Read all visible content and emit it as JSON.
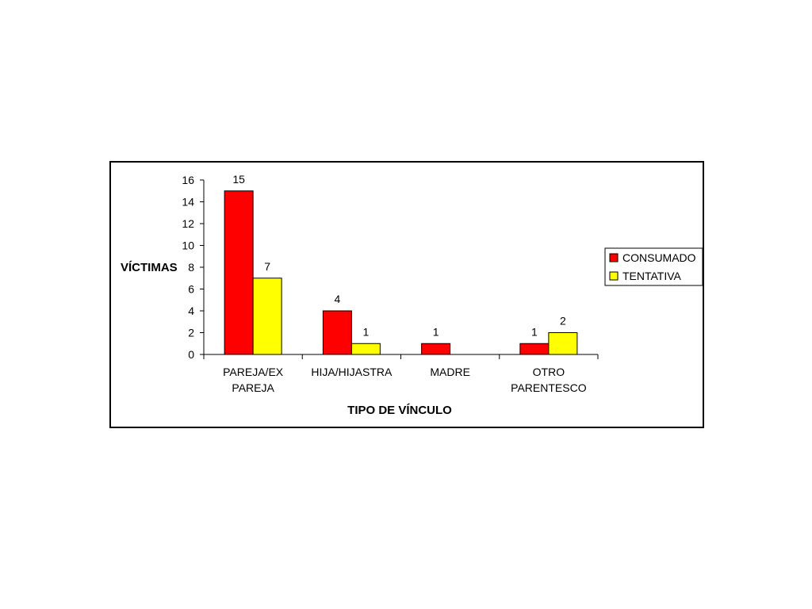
{
  "chart_data": {
    "type": "bar",
    "title": "",
    "xlabel": "TIPO DE VÍNCULO",
    "ylabel": "VÍCTIMAS",
    "ylim": [
      0,
      16
    ],
    "yticks": [
      0,
      2,
      4,
      6,
      8,
      10,
      12,
      14,
      16
    ],
    "categories": [
      [
        "PAREJA/EX",
        "PAREJA"
      ],
      [
        "HIJA/HIJASTRA"
      ],
      [
        "MADRE"
      ],
      [
        "OTRO",
        "PARENTESCO"
      ]
    ],
    "series": [
      {
        "name": "CONSUMADO",
        "color": "#ff0000",
        "values": [
          15,
          4,
          1,
          1
        ]
      },
      {
        "name": "TENTATIVA",
        "color": "#ffff00",
        "values": [
          7,
          1,
          null,
          2
        ]
      }
    ],
    "grid": false,
    "legend_position": "right"
  }
}
